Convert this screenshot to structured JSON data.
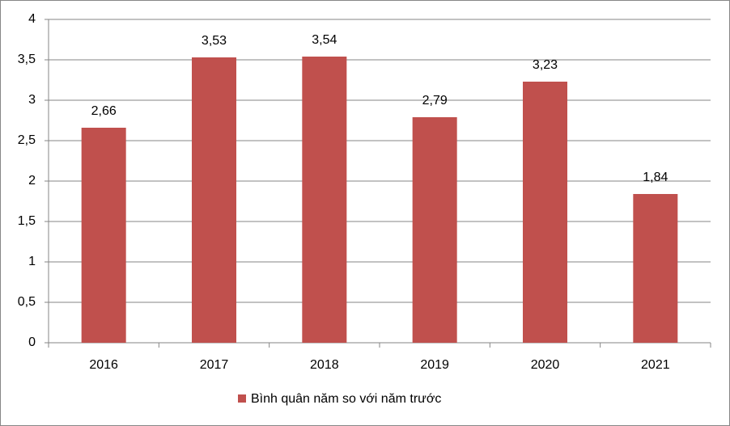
{
  "chart_data": {
    "type": "bar",
    "categories": [
      "2016",
      "2017",
      "2018",
      "2019",
      "2020",
      "2021"
    ],
    "series": [
      {
        "name": "Bình quân năm so với năm trước",
        "color": "#c0504d",
        "values": [
          2.66,
          3.53,
          3.54,
          2.79,
          3.23,
          1.84
        ],
        "value_labels": [
          "2,66",
          "3,53",
          "3,54",
          "2,79",
          "3,23",
          "1,84"
        ]
      }
    ],
    "ylim": [
      0,
      4
    ],
    "yticks": [
      0,
      {
        "value": 0.5,
        "label": "0,5"
      },
      1,
      {
        "value": 1.5,
        "label": "1,5"
      },
      2,
      {
        "value": 2.5,
        "label": "2,5"
      },
      3,
      {
        "value": 3.5,
        "label": "3,5"
      },
      4
    ],
    "grid": true,
    "legend": "bottom"
  }
}
